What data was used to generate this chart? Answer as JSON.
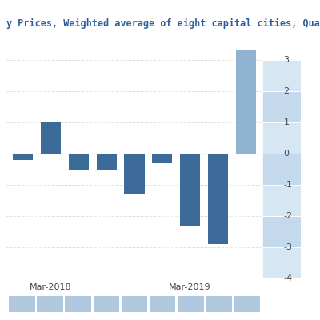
{
  "title": "y Prices, Weighted average of eight capital cities, Quarterly",
  "values": [
    -0.2,
    1.0,
    -0.5,
    -0.5,
    -1.3,
    -0.3,
    -2.3,
    -2.9,
    3.35
  ],
  "x_tick_positions": [
    1,
    6
  ],
  "x_tick_labels": [
    "Mar-2018",
    "Mar-2019"
  ],
  "ylim": [
    -4.0,
    3.7
  ],
  "yticks": [
    -4,
    -3,
    -2,
    -1,
    0,
    1,
    2,
    3
  ],
  "bar_color": "#3d6b99",
  "bar_color_last": "#8fb3d0",
  "background_color": "#ffffff",
  "grid_color": "#cccccc",
  "title_color": "#2e5d9e",
  "title_fontsize": 8.5,
  "tick_fontsize": 8,
  "tick_color": "#444444",
  "scrollbar_bg": "#dce8f0",
  "scrollbar_seg": "#b0c8de",
  "n_scroll_segs": 9
}
